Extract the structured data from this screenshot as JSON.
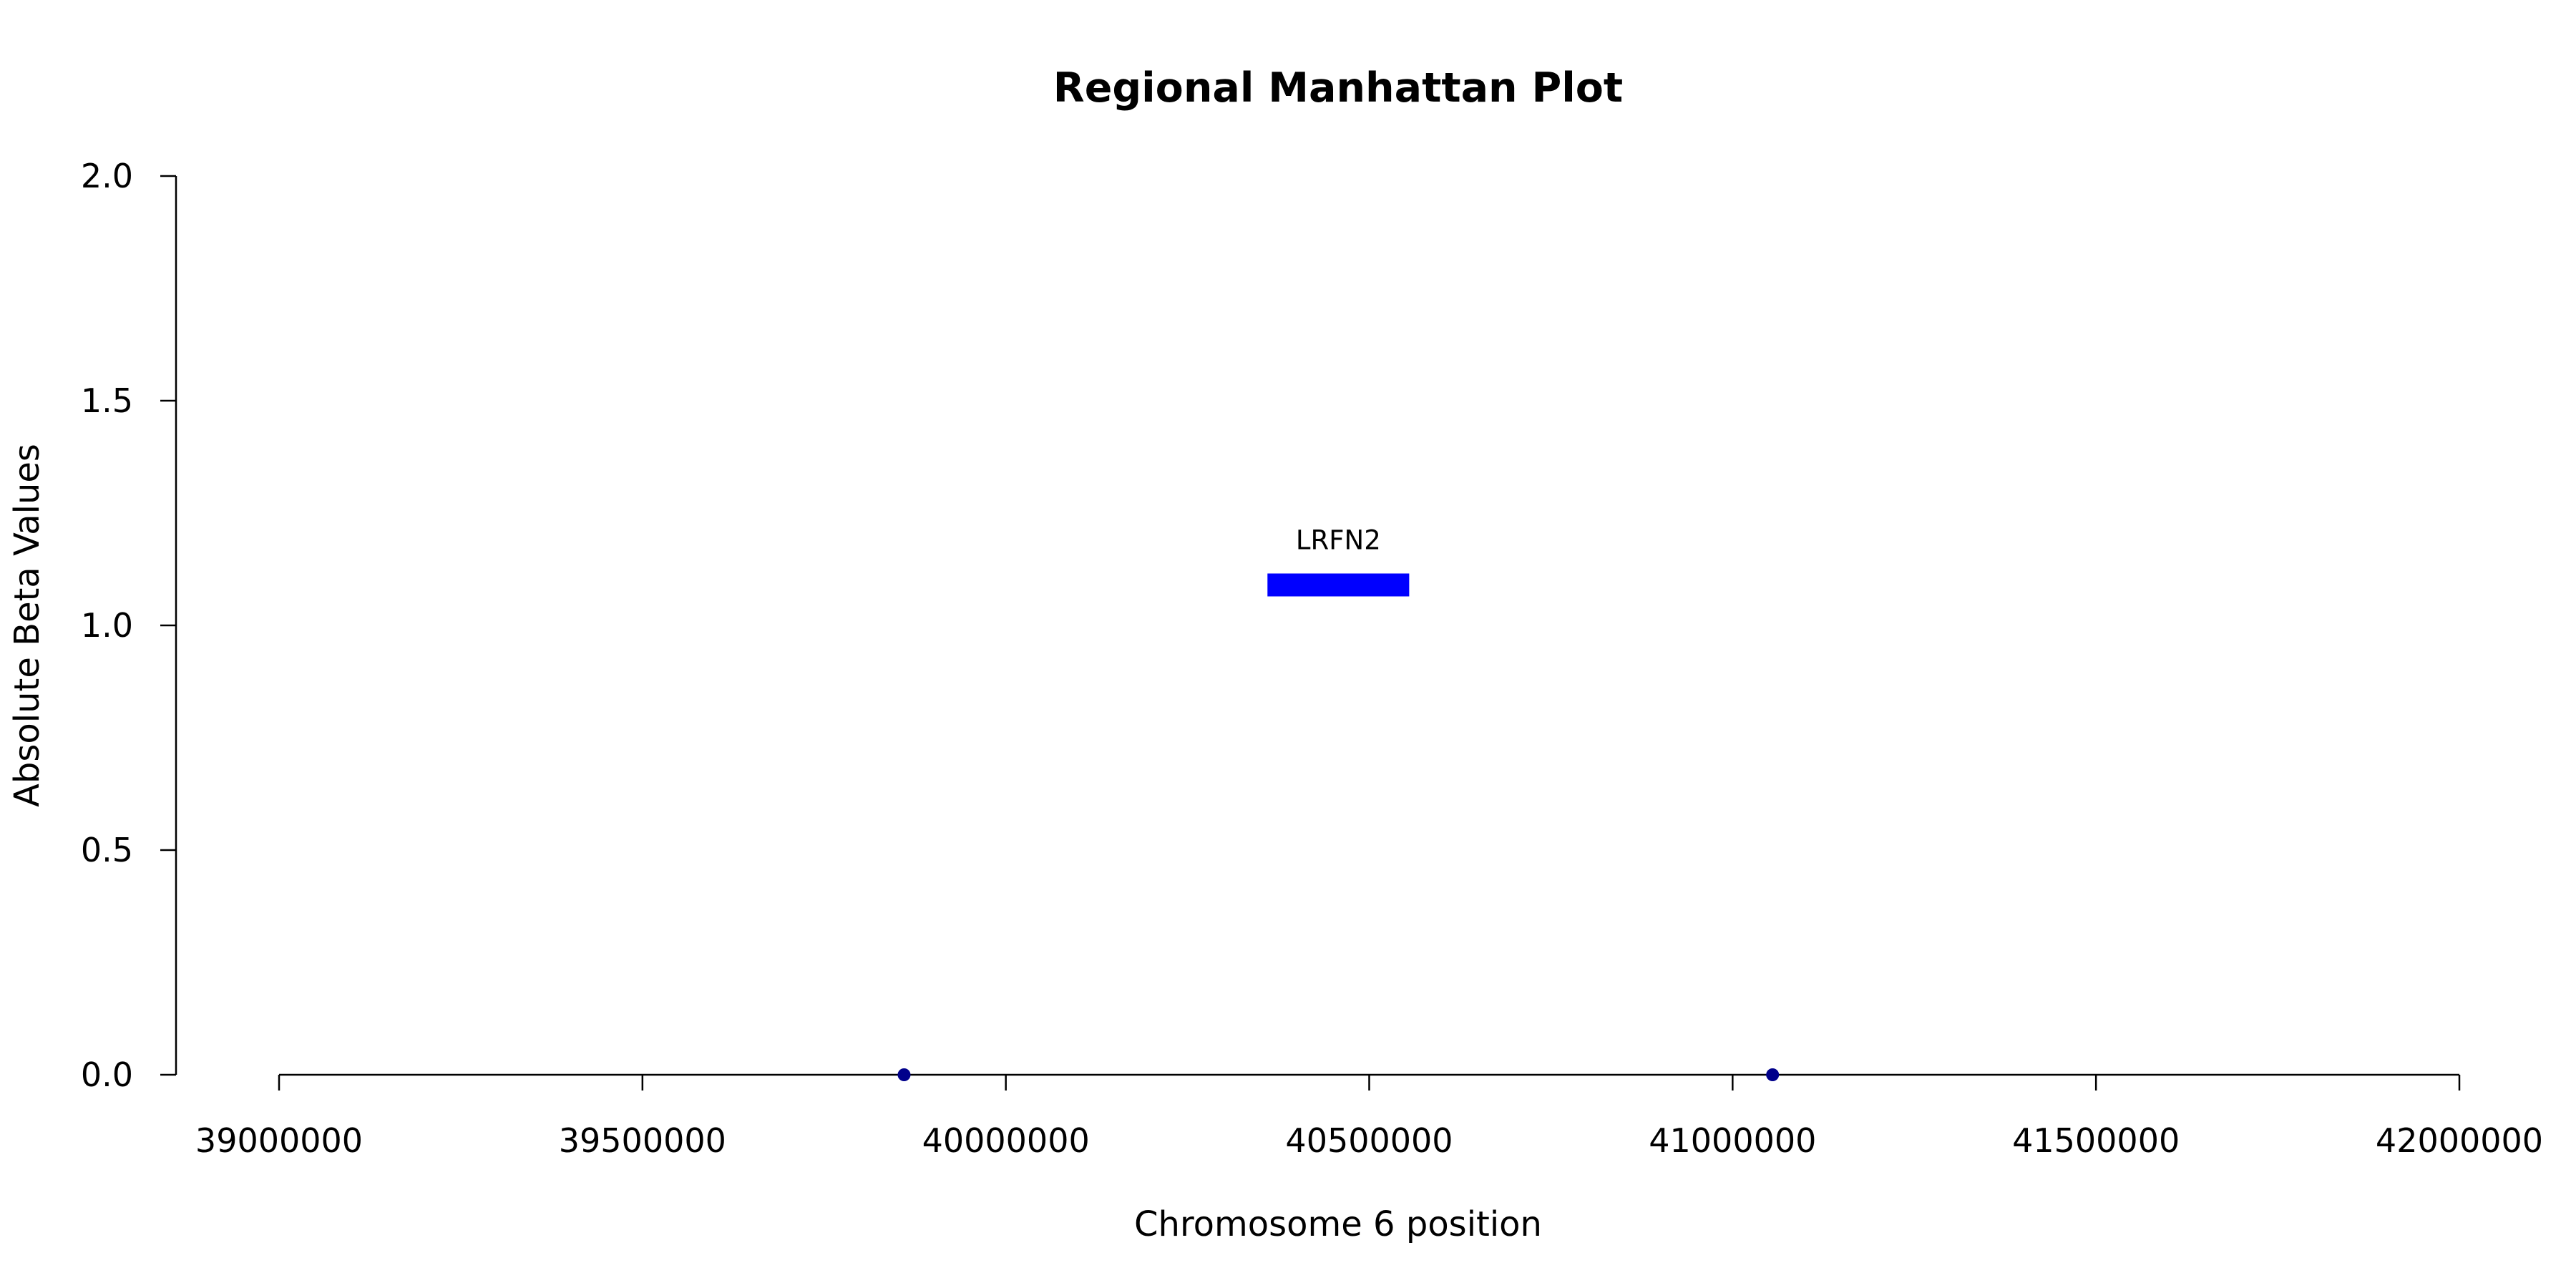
{
  "chart_data": {
    "type": "scatter",
    "title": "Regional Manhattan Plot",
    "xlabel": "Chromosome 6 position",
    "ylabel": "Absolute Beta Values",
    "xlim": [
      39000000,
      42000000
    ],
    "ylim": [
      0,
      2
    ],
    "x_ticks": [
      39000000,
      39500000,
      40000000,
      40500000,
      41000000,
      41500000,
      42000000
    ],
    "x_tick_labels": [
      "39000000",
      "39500000",
      "40000000",
      "40500000",
      "41000000",
      "41500000",
      "42000000"
    ],
    "y_ticks": [
      0,
      0.5,
      1,
      1.5,
      2
    ],
    "y_tick_labels": [
      "0.0",
      "0.5",
      "1.0",
      "1.5",
      "2.0"
    ],
    "grid": false,
    "points": [
      {
        "x": 39860000,
        "y": 0
      },
      {
        "x": 41055000,
        "y": 0
      }
    ],
    "point_color": "#00008b",
    "genes": [
      {
        "name": "LRFN2",
        "start": 40360000,
        "end": 40555000,
        "y": 1.09,
        "color": "#0000ff"
      }
    ]
  }
}
